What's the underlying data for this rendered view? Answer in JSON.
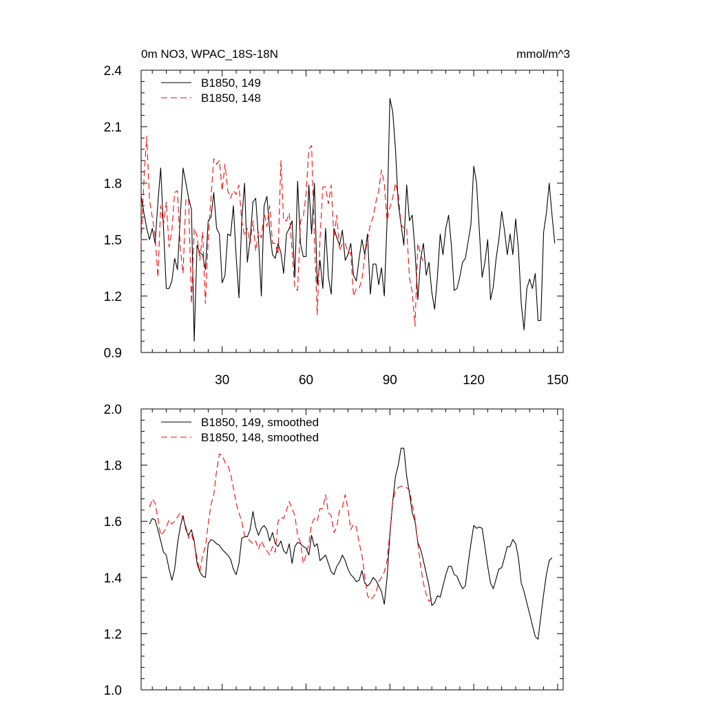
{
  "chart_data": [
    {
      "type": "line",
      "title": "0m NO3, WPAC_18S-18N",
      "units": "mmol/m^3",
      "xlim": [
        1,
        152
      ],
      "ylim": [
        0.9,
        2.4
      ],
      "x_ticks": [
        30,
        60,
        90,
        120,
        150
      ],
      "x_tick_labels": [
        "30",
        "60",
        "90",
        "120",
        "150"
      ],
      "y_ticks": [
        0.9,
        1.2,
        1.5,
        1.8,
        2.1,
        2.4
      ],
      "y_tick_labels": [
        "0.9",
        "1.2",
        "1.5",
        "1.8",
        "2.1",
        "2.4"
      ],
      "legend_position": "top-left",
      "series": [
        {
          "name": "B1850, 149",
          "color": "#000000",
          "dash": "solid",
          "x_start": 1,
          "values": [
            1.73,
            1.64,
            1.56,
            1.5,
            1.56,
            1.48,
            1.7,
            1.88,
            1.56,
            1.24,
            1.24,
            1.28,
            1.4,
            1.34,
            1.62,
            1.88,
            1.8,
            1.72,
            1.66,
            0.96,
            1.47,
            1.43,
            1.42,
            1.34,
            1.6,
            1.62,
            1.75,
            1.56,
            1.53,
            1.27,
            1.31,
            1.53,
            1.52,
            1.68,
            1.41,
            1.19,
            1.6,
            1.8,
            1.38,
            1.5,
            1.7,
            1.72,
            1.5,
            1.2,
            1.68,
            1.73,
            1.55,
            1.42,
            1.4,
            1.48,
            1.43,
            1.32,
            1.53,
            1.56,
            1.6,
            1.3,
            1.81,
            1.48,
            1.41,
            1.41,
            1.79,
            1.53,
            1.8,
            1.26,
            1.39,
            1.24,
            1.56,
            1.3,
            1.21,
            1.56,
            1.51,
            1.47,
            1.55,
            1.39,
            1.42,
            1.48,
            1.31,
            1.28,
            1.4,
            1.5,
            1.42,
            1.53,
            1.21,
            1.37,
            1.37,
            1.26,
            1.35,
            1.2,
            1.6,
            2.25,
            2.18,
            1.98,
            1.69,
            1.58,
            1.47,
            1.79,
            1.6,
            1.63,
            1.44,
            1.18,
            1.4,
            1.48,
            1.31,
            1.38,
            1.22,
            1.13,
            1.3,
            1.53,
            1.42,
            1.56,
            1.63,
            1.47,
            1.23,
            1.24,
            1.3,
            1.38,
            1.4,
            1.49,
            1.58,
            1.89,
            1.8,
            1.55,
            1.3,
            1.38,
            1.5,
            1.18,
            1.25,
            1.4,
            1.5,
            1.65,
            1.55,
            1.42,
            1.53,
            1.42,
            1.61,
            1.45,
            1.16,
            1.02,
            1.24,
            1.29,
            1.24,
            1.32,
            1.07,
            1.07,
            1.54,
            1.64,
            1.8,
            1.63,
            1.48
          ]
        },
        {
          "name": "B1850, 148",
          "color": "#ff0000",
          "dash": "dashed",
          "x_start": 1,
          "values": [
            1.48,
            1.82,
            2.05,
            1.71,
            1.62,
            1.52,
            1.3,
            1.68,
            1.58,
            1.7,
            1.46,
            1.55,
            1.75,
            1.76,
            1.46,
            1.32,
            1.72,
            1.71,
            1.16,
            1.56,
            1.52,
            1.39,
            1.54,
            1.16,
            1.5,
            1.73,
            1.93,
            1.9,
            1.92,
            1.76,
            1.9,
            1.76,
            1.72,
            1.76,
            1.74,
            1.79,
            1.6,
            1.52,
            1.56,
            1.48,
            1.6,
            1.44,
            1.54,
            1.51,
            1.64,
            1.57,
            1.68,
            1.48,
            1.48,
            1.42,
            1.92,
            1.6,
            1.6,
            1.64,
            1.44,
            1.24,
            1.23,
            1.6,
            1.62,
            1.74,
            1.98,
            2.0,
            1.5,
            1.1,
            1.5,
            1.78,
            1.78,
            1.69,
            1.79,
            1.51,
            1.63,
            1.44,
            1.48,
            1.48,
            1.43,
            1.43,
            1.2,
            1.24,
            1.24,
            1.29,
            1.41,
            1.5,
            1.58,
            1.62,
            1.7,
            1.76,
            1.87,
            1.8,
            1.6,
            1.67,
            1.72,
            1.8,
            1.74,
            1.58,
            1.56,
            1.56,
            1.3,
            1.22,
            1.04,
            1.48,
            1.42,
            1.38,
            1.37
          ]
        }
      ]
    },
    {
      "type": "line",
      "xlim": [
        1,
        152
      ],
      "ylim": [
        1.0,
        2.0
      ],
      "y_ticks": [
        1.0,
        1.2,
        1.4,
        1.6,
        1.8,
        2.0
      ],
      "y_tick_labels": [
        "1.0",
        "1.2",
        "1.4",
        "1.6",
        "1.8",
        "2.0"
      ],
      "x_ticks": [
        30,
        60,
        90,
        120,
        150
      ],
      "legend_position": "top-left",
      "series": [
        {
          "name": "B1850, 149, smoothed",
          "color": "#000000",
          "dash": "solid",
          "x_start": 4,
          "values": [
            1.59,
            1.61,
            1.605,
            1.57,
            1.53,
            1.49,
            1.48,
            1.43,
            1.39,
            1.43,
            1.52,
            1.58,
            1.62,
            1.57,
            1.55,
            1.57,
            1.53,
            1.45,
            1.42,
            1.405,
            1.4,
            1.52,
            1.535,
            1.53,
            1.52,
            1.515,
            1.5,
            1.49,
            1.48,
            1.465,
            1.43,
            1.41,
            1.45,
            1.54,
            1.545,
            1.545,
            1.57,
            1.635,
            1.58,
            1.55,
            1.575,
            1.585,
            1.57,
            1.53,
            1.56,
            1.52,
            1.51,
            1.53,
            1.495,
            1.485,
            1.52,
            1.45,
            1.51,
            1.525,
            1.52,
            1.51,
            1.505,
            1.48,
            1.55,
            1.51,
            1.52,
            1.46,
            1.47,
            1.48,
            1.45,
            1.42,
            1.41,
            1.44,
            1.455,
            1.48,
            1.46,
            1.43,
            1.41,
            1.4,
            1.385,
            1.39,
            1.425,
            1.38,
            1.37,
            1.38,
            1.4,
            1.39,
            1.37,
            1.35,
            1.305,
            1.4,
            1.55,
            1.67,
            1.76,
            1.8,
            1.86,
            1.86,
            1.76,
            1.7,
            1.63,
            1.6,
            1.525,
            1.5,
            1.46,
            1.415,
            1.37,
            1.3,
            1.31,
            1.335,
            1.33,
            1.37,
            1.41,
            1.44,
            1.44,
            1.41,
            1.405,
            1.38,
            1.36,
            1.37,
            1.45,
            1.52,
            1.585,
            1.575,
            1.58,
            1.575,
            1.51,
            1.44,
            1.38,
            1.36,
            1.395,
            1.43,
            1.435,
            1.47,
            1.51,
            1.51,
            1.535,
            1.52,
            1.47,
            1.38,
            1.35,
            1.31,
            1.27,
            1.23,
            1.19,
            1.18,
            1.26,
            1.34,
            1.41,
            1.46,
            1.47
          ]
        },
        {
          "name": "B1850, 148, smoothed",
          "color": "#ff0000",
          "dash": "dashed",
          "x_start": 4,
          "values": [
            1.65,
            1.68,
            1.665,
            1.61,
            1.55,
            1.56,
            1.58,
            1.605,
            1.59,
            1.6,
            1.615,
            1.63,
            1.61,
            1.58,
            1.54,
            1.555,
            1.52,
            1.47,
            1.42,
            1.48,
            1.51,
            1.59,
            1.66,
            1.695,
            1.78,
            1.84,
            1.835,
            1.81,
            1.8,
            1.77,
            1.72,
            1.665,
            1.63,
            1.6,
            1.55,
            1.54,
            1.53,
            1.52,
            1.53,
            1.5,
            1.53,
            1.51,
            1.495,
            1.48,
            1.51,
            1.49,
            1.6,
            1.615,
            1.61,
            1.64,
            1.67,
            1.645,
            1.62,
            1.55,
            1.525,
            1.45,
            1.48,
            1.52,
            1.59,
            1.61,
            1.6,
            1.645,
            1.645,
            1.695,
            1.63,
            1.62,
            1.56,
            1.58,
            1.64,
            1.65,
            1.695,
            1.645,
            1.57,
            1.59,
            1.58,
            1.525,
            1.48,
            1.405,
            1.335,
            1.32,
            1.33,
            1.345,
            1.385,
            1.4,
            1.42,
            1.46,
            1.56,
            1.67,
            1.71,
            1.72,
            1.725,
            1.725,
            1.72,
            1.71,
            1.66,
            1.61,
            1.52,
            1.44,
            1.38,
            1.34,
            1.315,
            1.325,
            1.33
          ]
        }
      ]
    }
  ]
}
